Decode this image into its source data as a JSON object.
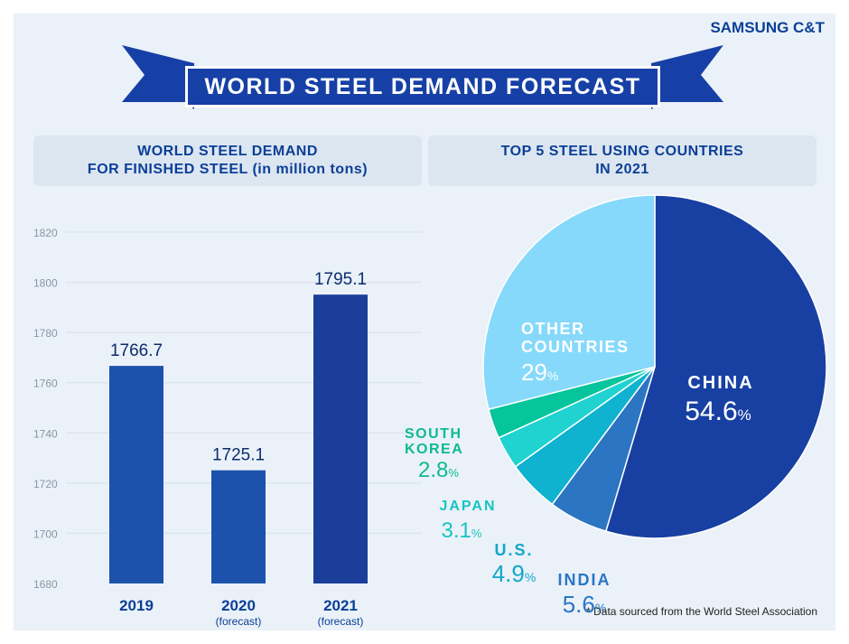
{
  "brand": "SAMSUNG C&T",
  "title": "WORLD STEEL DEMAND FORECAST",
  "left_header": {
    "line1": "WORLD STEEL DEMAND",
    "line2": "FOR FINISHED STEEL (in million tons)"
  },
  "right_header": {
    "line1": "TOP 5 STEEL USING COUNTRIES",
    "line2": "IN 2021"
  },
  "footnote": "* Data sourced from the World Steel Association",
  "colors": {
    "bar": "#1c52ab",
    "bar_dark": "#1a3e9a",
    "label": "#0b3f97",
    "grid": "#d7dfe8"
  },
  "chart_data": [
    {
      "type": "bar",
      "title": "WORLD STEEL DEMAND FOR FINISHED STEEL (in million tons)",
      "categories": [
        "2019",
        "2020",
        "2021"
      ],
      "sublabels": [
        "",
        "(forecast)",
        "(forecast)"
      ],
      "values": [
        1766.7,
        1725.1,
        1795.1
      ],
      "value_labels": [
        "1766.7",
        "1725.1",
        "1795.1"
      ],
      "ylim": [
        1680,
        1820
      ],
      "yticks": [
        1680,
        1700,
        1720,
        1740,
        1760,
        1780,
        1800,
        1820
      ],
      "grid": true
    },
    {
      "type": "pie",
      "title": "TOP 5 STEEL USING COUNTRIES IN 2021",
      "slices": [
        {
          "name": "CHINA",
          "value": 54.6,
          "label": "54.6",
          "color": "#1740a2",
          "text_color": "#ffffff"
        },
        {
          "name": "INDIA",
          "value": 5.6,
          "label": "5.6",
          "color": "#2b75c2",
          "text_color": "#2a76c6"
        },
        {
          "name": "U.S.",
          "value": 4.9,
          "label": "4.9",
          "color": "#0fb2cf",
          "text_color": "#12a8cb"
        },
        {
          "name": "JAPAN",
          "value": 3.1,
          "label": "3.1",
          "color": "#20d2d0",
          "text_color": "#17c4c3"
        },
        {
          "name": "SOUTH KOREA",
          "value": 2.8,
          "label": "2.8",
          "color": "#06c49b",
          "text_color": "#0dba92"
        },
        {
          "name": "OTHER COUNTRIES",
          "value": 29,
          "label": "29",
          "color": "#86d9fb",
          "text_color": "#ffffff"
        }
      ],
      "unit": "%"
    }
  ]
}
